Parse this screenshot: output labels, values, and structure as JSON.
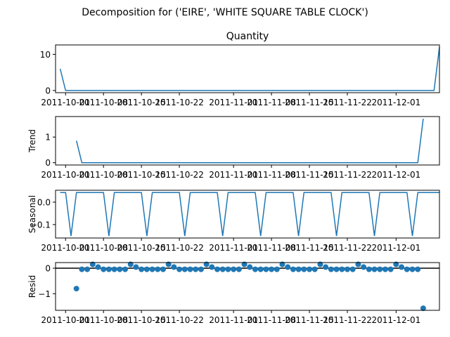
{
  "figure": {
    "suptitle": "Decomposition for ('EIRE', 'WHITE SQUARE TABLE CLOCK')"
  },
  "colors": {
    "series": "#1f77b4",
    "axis": "#000000",
    "zero_line": "#000000"
  },
  "chart_data": [
    {
      "type": "line",
      "title": "Quantity",
      "ylabel": "",
      "x": [
        "2011-09-30",
        "2011-10-01",
        "2011-10-02",
        "2011-10-03",
        "2011-10-04",
        "2011-10-05",
        "2011-10-06",
        "2011-10-07",
        "2011-10-08",
        "2011-10-09",
        "2011-10-10",
        "2011-10-11",
        "2011-10-12",
        "2011-10-13",
        "2011-10-14",
        "2011-10-15",
        "2011-10-16",
        "2011-10-17",
        "2011-10-18",
        "2011-10-19",
        "2011-10-20",
        "2011-10-21",
        "2011-10-22",
        "2011-10-23",
        "2011-10-24",
        "2011-10-25",
        "2011-10-26",
        "2011-10-27",
        "2011-10-28",
        "2011-10-29",
        "2011-10-30",
        "2011-10-31",
        "2011-11-01",
        "2011-11-02",
        "2011-11-03",
        "2011-11-04",
        "2011-11-05",
        "2011-11-06",
        "2011-11-07",
        "2011-11-08",
        "2011-11-09",
        "2011-11-10",
        "2011-11-11",
        "2011-11-12",
        "2011-11-13",
        "2011-11-14",
        "2011-11-15",
        "2011-11-16",
        "2011-11-17",
        "2011-11-18",
        "2011-11-19",
        "2011-11-20",
        "2011-11-21",
        "2011-11-22",
        "2011-11-23",
        "2011-11-24",
        "2011-11-25",
        "2011-11-26",
        "2011-11-27",
        "2011-11-28",
        "2011-11-29",
        "2011-11-30",
        "2011-12-01",
        "2011-12-02",
        "2011-12-03",
        "2011-12-04",
        "2011-12-05",
        "2011-12-06",
        "2011-12-07",
        "2011-12-08",
        "2011-12-09"
      ],
      "values": [
        6,
        0,
        0,
        0,
        0,
        0,
        0,
        0,
        0,
        0,
        0,
        0,
        0,
        0,
        0,
        0,
        0,
        0,
        0,
        0,
        0,
        0,
        0,
        0,
        0,
        0,
        0,
        0,
        0,
        0,
        0,
        0,
        0,
        0,
        0,
        0,
        0,
        0,
        0,
        0,
        0,
        0,
        0,
        0,
        0,
        0,
        0,
        0,
        0,
        0,
        0,
        0,
        0,
        0,
        0,
        0,
        0,
        0,
        0,
        0,
        0,
        0,
        0,
        0,
        0,
        0,
        0,
        0,
        0,
        0,
        12
      ],
      "ylim": [
        -0.6,
        12.6
      ],
      "yticks": [
        0,
        10
      ],
      "xticks": [
        "2011-10-01",
        "2011-10-08",
        "2011-10-15",
        "2011-10-22",
        "2011-11-01",
        "2011-11-08",
        "2011-11-15",
        "2011-11-22",
        "2011-12-01"
      ]
    },
    {
      "type": "line",
      "title": "",
      "ylabel": "Trend",
      "x_start": "2011-10-03",
      "x_end": "2011-12-06",
      "values_head": [
        0.857,
        0
      ],
      "values_tail": [
        1.714
      ],
      "ylim": [
        -0.09,
        1.8
      ],
      "yticks": [
        0,
        1
      ],
      "xticks": [
        "2011-10-01",
        "2011-10-08",
        "2011-10-15",
        "2011-10-22",
        "2011-11-01",
        "2011-11-08",
        "2011-11-15",
        "2011-11-22",
        "2011-12-01"
      ]
    },
    {
      "type": "line",
      "title": "",
      "ylabel": "Seasonal",
      "period": 7,
      "cycle": [
        0.043,
        0.043,
        -0.151,
        0.043,
        0.043,
        0.043,
        0.043
      ],
      "cycle_start": "2011-09-30",
      "ylim": [
        -0.16,
        0.053
      ],
      "yticks": [
        0.0,
        -0.1
      ],
      "ytick_labels": [
        "0.0",
        "−0.1"
      ],
      "xticks": [
        "2011-10-01",
        "2011-10-08",
        "2011-10-15",
        "2011-10-22",
        "2011-11-01",
        "2011-11-08",
        "2011-11-15",
        "2011-11-22",
        "2011-12-01"
      ]
    },
    {
      "type": "scatter",
      "title": "",
      "ylabel": "Resid",
      "points": [
        {
          "x": "2011-10-03",
          "y": -0.8
        },
        {
          "x": "2011-12-06",
          "y": -1.57
        }
      ],
      "repeating_resid_cycle": [
        -0.043,
        -0.043,
        0.151,
        0.043,
        -0.043,
        -0.043,
        -0.043
      ],
      "ylim": [
        -1.65,
        0.22
      ],
      "yticks": [
        0,
        -1
      ],
      "ytick_labels": [
        "0",
        "−1"
      ],
      "zero_line": true,
      "xticks": [
        "2011-10-01",
        "2011-10-08",
        "2011-10-15",
        "2011-10-22",
        "2011-11-01",
        "2011-11-08",
        "2011-11-15",
        "2011-11-22",
        "2011-12-01"
      ]
    }
  ]
}
